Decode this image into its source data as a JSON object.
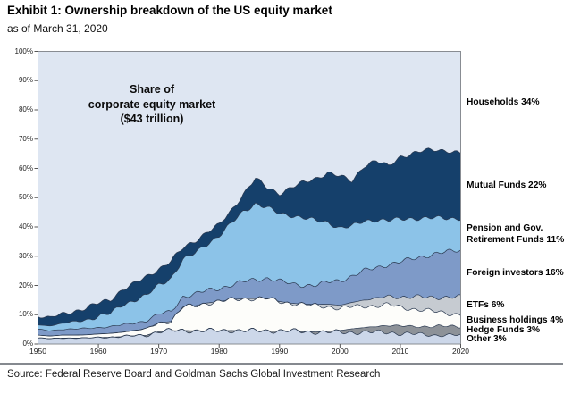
{
  "header": {
    "title": "Exhibit 1: Ownership breakdown of the US equity market",
    "subtitle": "as of March 31, 2020"
  },
  "annotation": {
    "text_lines": [
      "Share of",
      "corporate equity market",
      "($43 trillion)"
    ]
  },
  "footer": {
    "source": "Source: Federal Reserve Board and Goldman Sachs Global Investment Research"
  },
  "chart_data": {
    "type": "area",
    "stacked": true,
    "title": "Share of corporate equity market ($43 trillion)",
    "xlabel": "",
    "ylabel": "",
    "xlim": [
      1950,
      2020
    ],
    "ylim": [
      0,
      100
    ],
    "grid": false,
    "legend_position": "right-outside",
    "x_ticks": [
      "1950",
      "1960",
      "1970",
      "1980",
      "1990",
      "2000",
      "2010",
      "2020"
    ],
    "y_ticks": [
      "0%",
      "10%",
      "20%",
      "30%",
      "40%",
      "50%",
      "60%",
      "70%",
      "80%",
      "90%",
      "100%"
    ],
    "x": [
      1950,
      1952,
      1954,
      1956,
      1958,
      1960,
      1962,
      1964,
      1966,
      1968,
      1970,
      1972,
      1974,
      1976,
      1978,
      1980,
      1982,
      1984,
      1986,
      1988,
      1990,
      1992,
      1994,
      1996,
      1998,
      2000,
      2002,
      2004,
      2006,
      2008,
      2010,
      2012,
      2014,
      2016,
      2018,
      2020
    ],
    "series": [
      {
        "name": "Other",
        "label": "Other 3%",
        "final_share_pct": 3,
        "color": "#ccd7e9",
        "values": [
          2.0,
          1.8,
          2.0,
          2.0,
          2.0,
          2.2,
          2.3,
          2.5,
          2.8,
          3.0,
          4.2,
          4.5,
          4.6,
          4.5,
          4.5,
          4.5,
          4.6,
          4.5,
          4.5,
          4.5,
          4.5,
          4.4,
          4.2,
          4.1,
          4.0,
          4.0,
          4.0,
          4.0,
          4.0,
          4.0,
          3.6,
          3.4,
          3.2,
          3.0,
          3.0,
          3.0
        ]
      },
      {
        "name": "Hedge Funds",
        "label": "Hedge Funds 3%",
        "final_share_pct": 3,
        "color": "#8d9298",
        "values": [
          0,
          0,
          0,
          0,
          0,
          0,
          0,
          0,
          0,
          0,
          0,
          0,
          0,
          0,
          0,
          0,
          0,
          0,
          0,
          0,
          0,
          0,
          0,
          0,
          0.3,
          0.6,
          1.2,
          1.6,
          2.0,
          2.4,
          2.5,
          2.6,
          2.8,
          3.0,
          3.0,
          3.0
        ]
      },
      {
        "name": "Business holdings",
        "label": "Business holdings 4%",
        "final_share_pct": 4,
        "color": "#fdfdfa",
        "values": [
          1.0,
          0.9,
          1.0,
          1.0,
          1.1,
          1.2,
          1.3,
          1.5,
          1.8,
          2.2,
          3.0,
          3.2,
          8.0,
          8.5,
          9.5,
          10.0,
          10.5,
          11.0,
          11.0,
          11.0,
          10.0,
          9.5,
          9.2,
          9.0,
          8.5,
          7.5,
          7.5,
          7.4,
          7.0,
          7.0,
          6.5,
          6.0,
          5.5,
          5.0,
          4.5,
          4.0
        ]
      },
      {
        "name": "ETFs",
        "label": "ETFs 6%",
        "final_share_pct": 6,
        "color": "#c6cbd1",
        "values": [
          0,
          0,
          0,
          0,
          0,
          0,
          0,
          0,
          0,
          0,
          0,
          0,
          0,
          0,
          0,
          0,
          0,
          0,
          0,
          0,
          0,
          0,
          0.2,
          0.4,
          0.8,
          1.1,
          1.5,
          2.0,
          2.5,
          3.0,
          3.5,
          4.0,
          4.5,
          5.0,
          5.5,
          6.0
        ]
      },
      {
        "name": "Foreign investors",
        "label": "Foreign investors 16%",
        "final_share_pct": 16,
        "color": "#7e9ac8",
        "values": [
          2.0,
          1.8,
          2.0,
          2.1,
          2.2,
          2.2,
          2.3,
          2.5,
          2.6,
          2.8,
          3.0,
          3.3,
          3.6,
          4.0,
          4.3,
          4.5,
          5.0,
          5.8,
          6.5,
          7.0,
          7.0,
          6.6,
          6.5,
          6.6,
          7.5,
          8.5,
          9.0,
          10.0,
          10.5,
          10.8,
          12.0,
          13.0,
          14.0,
          15.0,
          15.5,
          16.0
        ]
      },
      {
        "name": "Pension and Gov. Retirement Funds",
        "label": "Pension and Gov. Retirement Funds 11%",
        "final_share_pct": 11,
        "color": "#8cc3e8",
        "values": [
          1.5,
          1.7,
          2.0,
          2.5,
          3.0,
          3.8,
          4.5,
          7.0,
          7.8,
          8.5,
          10.0,
          11.5,
          12.5,
          14.0,
          16.0,
          18.0,
          21.0,
          24.0,
          26.0,
          24.0,
          23.0,
          23.5,
          23.0,
          22.0,
          20.5,
          18.0,
          17.0,
          17.0,
          16.5,
          15.0,
          14.5,
          14.0,
          13.0,
          12.0,
          11.5,
          11.0
        ]
      },
      {
        "name": "Mutual Funds",
        "label": "Mutual Funds 22%",
        "final_share_pct": 22,
        "color": "#15406b",
        "values": [
          3.0,
          2.8,
          3.2,
          3.6,
          4.0,
          4.5,
          4.8,
          5.2,
          5.6,
          6.5,
          5.5,
          5.8,
          4.0,
          4.3,
          4.0,
          3.6,
          4.5,
          6.0,
          8.5,
          6.8,
          7.0,
          9.5,
          12.0,
          14.5,
          17.0,
          17.5,
          15.5,
          19.0,
          20.0,
          18.5,
          21.5,
          22.0,
          23.0,
          23.5,
          23.0,
          22.0
        ]
      }
    ],
    "remainder_series": {
      "name": "Households",
      "label": "Households 34%",
      "final_share_pct": 34,
      "color": "#dee6f2"
    }
  },
  "style": {
    "plot_border_color": "#888c92",
    "boundary_stroke_color": "#2a3950",
    "rule_color": "#85898f",
    "households_fill": "#dee6f2"
  }
}
